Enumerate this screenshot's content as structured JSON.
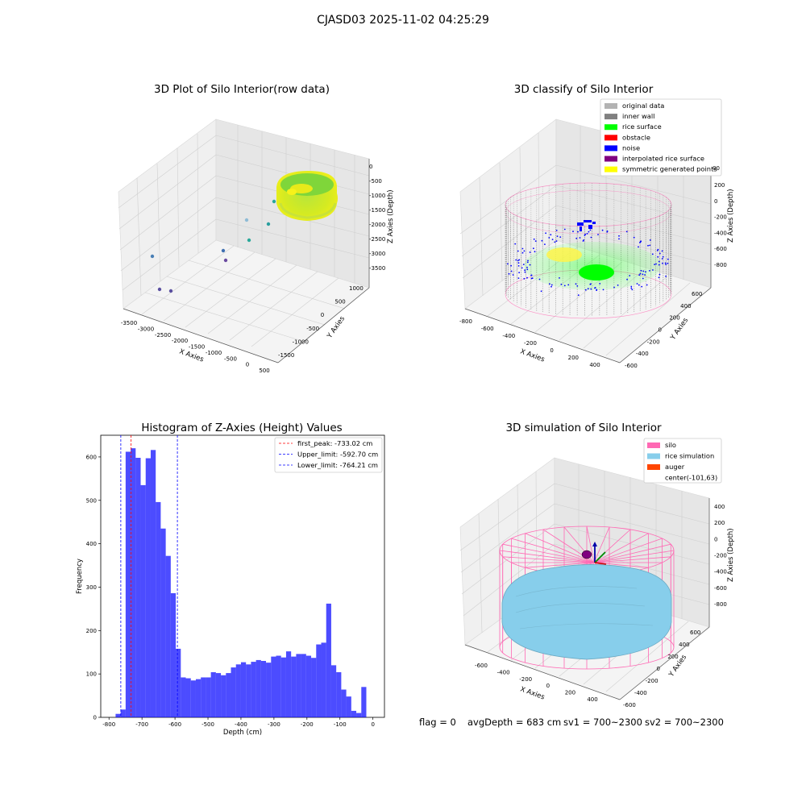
{
  "suptitle": "CJASD03 2025-11-02 04:25:29",
  "panels": {
    "raw": {
      "title": "3D Plot of Silo Interior(row data)",
      "xlabel": "X Axies",
      "ylabel": "Y Axies",
      "zlabel": "Z Axies (Depth)",
      "xticks": [
        "-3500",
        "-3000",
        "-2500",
        "-2000",
        "-1500",
        "-1000",
        "-500",
        "0",
        "500"
      ],
      "yticks": [
        "1000",
        "500",
        "0",
        "-500",
        "-1000",
        "-1500"
      ],
      "zticks": [
        "0",
        "-500",
        "-1000",
        "-1500",
        "-2000",
        "-2500",
        "-3000",
        "-3500"
      ]
    },
    "classify": {
      "title": "3D classify of Silo Interior",
      "xlabel": "X Axies",
      "ylabel": "Y Axies",
      "zlabel": "Z Axies (Depth)",
      "xticks": [
        "-800",
        "-600",
        "-400",
        "-200",
        "0",
        "200",
        "400"
      ],
      "yticks": [
        "600",
        "400",
        "200",
        "0",
        "-200",
        "-400",
        "-600"
      ],
      "zticks": [
        "200",
        "0",
        "-200",
        "-400",
        "-600",
        "-800"
      ],
      "zticks_partial": "00",
      "legend": [
        {
          "label": "original data",
          "color": "#b3b3b3"
        },
        {
          "label": "inner wall",
          "color": "#808080"
        },
        {
          "label": "rice surface",
          "color": "#00ff00"
        },
        {
          "label": "obstacle",
          "color": "#ff0000"
        },
        {
          "label": "noise",
          "color": "#0000ff"
        },
        {
          "label": "interpolated rice surface",
          "color": "#800080"
        },
        {
          "label": "symmetric generated points",
          "color": "#ffff00"
        }
      ]
    },
    "sim": {
      "title": "3D simulation of Silo Interior",
      "xlabel": "X Axies",
      "ylabel": "Y Axies",
      "zlabel": "Z Axies (Depth)",
      "xticks": [
        "-600",
        "-400",
        "-200",
        "0",
        "200",
        "400"
      ],
      "yticks": [
        "600",
        "400",
        "200",
        "0",
        "-200",
        "-400",
        "-600"
      ],
      "zticks": [
        "400",
        "200",
        "0",
        "-200",
        "-400",
        "-600",
        "-800"
      ],
      "legend": [
        {
          "label": "silo",
          "color": "#ff69b4"
        },
        {
          "label": "rice simulation",
          "color": "#87ceeb"
        },
        {
          "label": "auger",
          "color": "#ff4500"
        },
        {
          "label": "center(-101,63)",
          "color": ""
        }
      ]
    }
  },
  "chart_data": {
    "type": "bar",
    "title": "Histogram of Z-Axies (Height) Values",
    "xlabel": "Depth (cm)",
    "ylabel": "Frequency",
    "xlim": [
      -825,
      35
    ],
    "ylim": [
      0,
      650
    ],
    "xticks": [
      -800,
      -700,
      -600,
      -500,
      -400,
      -300,
      -200,
      -100,
      0
    ],
    "yticks": [
      0,
      100,
      200,
      300,
      400,
      500,
      600
    ],
    "bin_start": -780,
    "bin_width": 15.2,
    "values": [
      8,
      18,
      612,
      620,
      598,
      535,
      597,
      616,
      496,
      435,
      372,
      286,
      158,
      92,
      90,
      85,
      88,
      92,
      92,
      104,
      102,
      97,
      102,
      115,
      122,
      127,
      122,
      128,
      132,
      130,
      126,
      140,
      142,
      138,
      152,
      140,
      146,
      146,
      142,
      137,
      168,
      172,
      262,
      120,
      104,
      64,
      48,
      15,
      10,
      70
    ],
    "color": "#0000ff",
    "vlines": [
      {
        "label": "first_peak: -733.02 cm",
        "x": -733.02,
        "color": "#ff0000"
      },
      {
        "label": "Upper_limit: -592.70 cm",
        "x": -592.7,
        "color": "#0000ff"
      },
      {
        "label": "Lower_limit: -764.21 cm",
        "x": -764.21,
        "color": "#0000ff"
      }
    ]
  },
  "footer": {
    "flag": "flag = 0",
    "avg": "avgDepth = 683 cm",
    "sv1": "sv1 = 700~2300",
    "sv2": "sv2 = 700~2300"
  }
}
